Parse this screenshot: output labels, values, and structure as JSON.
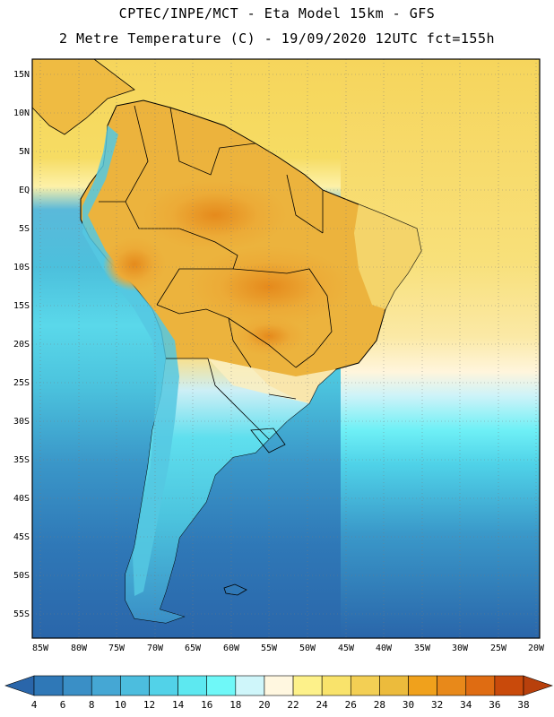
{
  "header": {
    "line1": "CPTEC/INPE/MCT -  Eta Model 15km - GFS",
    "line2": "2 Metre Temperature (C) - 19/09/2020 12UTC fct=155h"
  },
  "map": {
    "lat_labels": [
      "15N",
      "10N",
      "5N",
      "EQ",
      "5S",
      "10S",
      "15S",
      "20S",
      "25S",
      "30S",
      "35S",
      "40S",
      "45S",
      "50S",
      "55S"
    ],
    "lon_labels": [
      "85W",
      "80W",
      "75W",
      "70W",
      "65W",
      "60W",
      "55W",
      "50W",
      "45W",
      "40W",
      "35W",
      "30W",
      "25W",
      "20W"
    ],
    "gridlines": "dotted"
  },
  "colorbar": {
    "ticks": [
      "4",
      "6",
      "8",
      "10",
      "12",
      "14",
      "16",
      "18",
      "20",
      "22",
      "24",
      "26",
      "28",
      "30",
      "32",
      "34",
      "36",
      "38"
    ],
    "colors": [
      "#2a66aa",
      "#2f78b7",
      "#3a8fc6",
      "#45a7d4",
      "#4cbdde",
      "#52d2e8",
      "#5de8f0",
      "#6ff8f8",
      "#cff6fa",
      "#fff7e0",
      "#fdf18a",
      "#f9e36b",
      "#f3cf54",
      "#ecbb3c",
      "#f0a11c",
      "#e8891a",
      "#df6c12",
      "#c94a0b",
      "#b8400c"
    ]
  }
}
